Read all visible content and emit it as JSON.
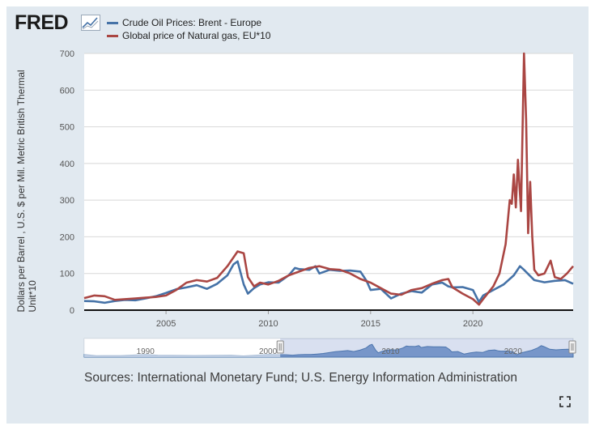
{
  "header": {
    "logo_text": "FRED",
    "logo_mark": "chart-trend-icon"
  },
  "legend": [
    {
      "label": "Crude Oil Prices: Brent - Europe",
      "color": "#4572a7"
    },
    {
      "label": "Global price of Natural gas, EU*10",
      "color": "#aa4643"
    }
  ],
  "footer": {
    "source": "Sources: International Monetary Fund; U.S. Energy Information Administration",
    "fullscreen_icon": "fullscreen-icon"
  },
  "chart_data": {
    "type": "line",
    "title": "",
    "ylabel": "Dollars per Barrel , U.S. $ per Mil. Metric British Thermal Unit*10",
    "xlabel": "",
    "xlim": [
      2001.0,
      2024.9
    ],
    "ylim": [
      0,
      700
    ],
    "yticks": [
      0,
      100,
      200,
      300,
      400,
      500,
      600,
      700
    ],
    "xticks": [
      2005,
      2010,
      2015,
      2020
    ],
    "series": [
      {
        "name": "Crude Oil Prices: Brent - Europe",
        "color": "#4572a7",
        "x": [
          2001.0,
          2001.5,
          2002.0,
          2002.5,
          2003.0,
          2003.5,
          2004.0,
          2004.5,
          2005.0,
          2005.5,
          2006.0,
          2006.5,
          2007.0,
          2007.5,
          2008.0,
          2008.3,
          2008.5,
          2008.8,
          2009.0,
          2009.3,
          2009.6,
          2010.0,
          2010.5,
          2011.0,
          2011.3,
          2011.5,
          2012.0,
          2012.3,
          2012.5,
          2013.0,
          2013.5,
          2014.0,
          2014.5,
          2014.8,
          2015.0,
          2015.5,
          2016.0,
          2016.5,
          2017.0,
          2017.5,
          2018.0,
          2018.5,
          2018.8,
          2019.0,
          2019.5,
          2020.0,
          2020.3,
          2020.5,
          2021.0,
          2021.5,
          2022.0,
          2022.3,
          2022.5,
          2023.0,
          2023.5,
          2024.0,
          2024.5,
          2024.9
        ],
        "values": [
          25,
          24,
          20,
          25,
          28,
          27,
          32,
          38,
          47,
          57,
          62,
          68,
          58,
          72,
          95,
          125,
          133,
          70,
          45,
          60,
          70,
          76,
          75,
          95,
          115,
          112,
          110,
          120,
          100,
          110,
          107,
          108,
          105,
          80,
          55,
          58,
          32,
          45,
          52,
          48,
          70,
          75,
          65,
          62,
          63,
          55,
          22,
          40,
          55,
          70,
          95,
          120,
          110,
          82,
          76,
          80,
          82,
          72
        ]
      },
      {
        "name": "Global price of Natural gas, EU*10",
        "color": "#aa4643",
        "x": [
          2001.0,
          2001.5,
          2002.0,
          2002.5,
          2003.0,
          2003.5,
          2004.0,
          2004.5,
          2005.0,
          2005.5,
          2006.0,
          2006.5,
          2007.0,
          2007.5,
          2008.0,
          2008.5,
          2008.8,
          2009.0,
          2009.3,
          2009.6,
          2010.0,
          2010.5,
          2011.0,
          2011.5,
          2012.0,
          2012.5,
          2013.0,
          2013.5,
          2014.0,
          2014.5,
          2015.0,
          2015.5,
          2016.0,
          2016.5,
          2017.0,
          2017.5,
          2018.0,
          2018.5,
          2018.8,
          2019.0,
          2019.5,
          2020.0,
          2020.3,
          2020.5,
          2021.0,
          2021.3,
          2021.6,
          2021.8,
          2021.9,
          2022.0,
          2022.1,
          2022.2,
          2022.35,
          2022.5,
          2022.6,
          2022.7,
          2022.8,
          2022.9,
          2023.0,
          2023.2,
          2023.5,
          2023.8,
          2024.0,
          2024.3,
          2024.6,
          2024.9
        ],
        "values": [
          33,
          40,
          38,
          28,
          30,
          32,
          34,
          36,
          40,
          55,
          75,
          82,
          78,
          88,
          120,
          160,
          155,
          90,
          65,
          75,
          70,
          80,
          95,
          105,
          115,
          120,
          112,
          110,
          100,
          85,
          75,
          60,
          45,
          42,
          55,
          60,
          72,
          82,
          85,
          62,
          45,
          30,
          15,
          30,
          65,
          100,
          180,
          300,
          290,
          370,
          280,
          410,
          270,
          700,
          520,
          210,
          350,
          200,
          110,
          95,
          100,
          135,
          90,
          85,
          100,
          120
        ]
      }
    ]
  }
}
